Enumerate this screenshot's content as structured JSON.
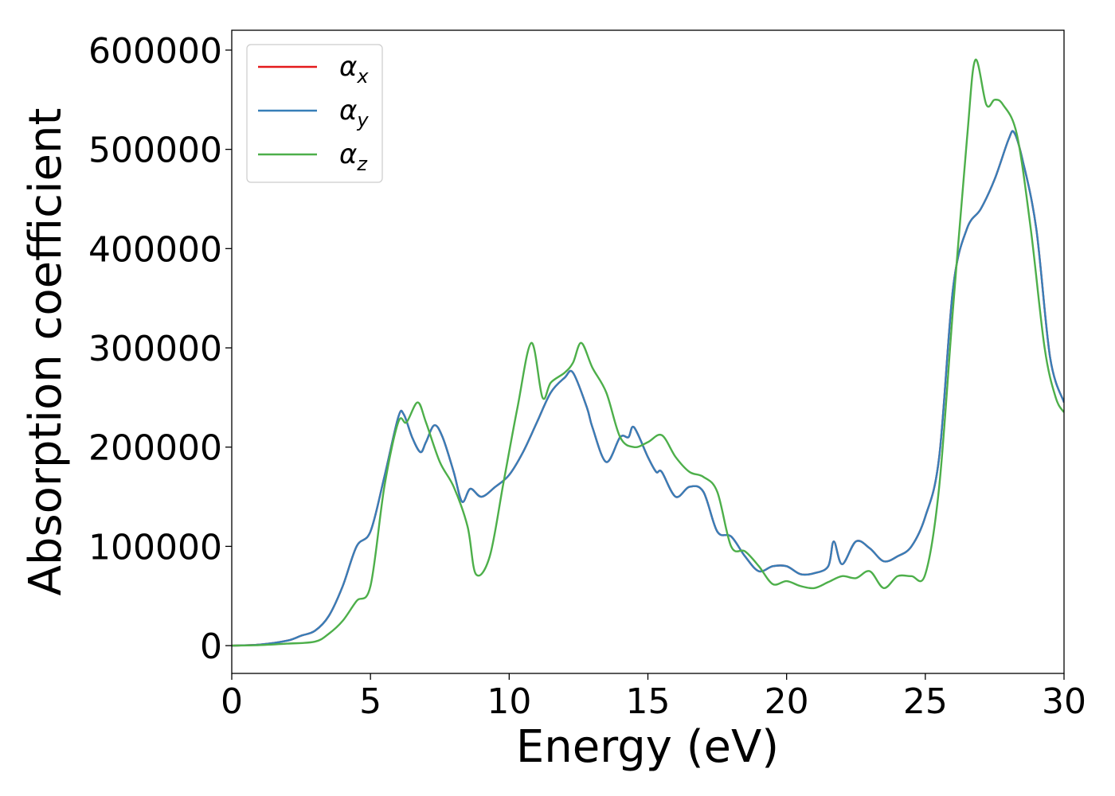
{
  "chart_data": {
    "type": "line",
    "title": "",
    "xlabel": "Energy (eV)",
    "ylabel": "Absorption coefficient",
    "xlim": [
      0,
      30
    ],
    "ylim": [
      -28000,
      620000
    ],
    "xticks": [
      0,
      5,
      10,
      15,
      20,
      25,
      30
    ],
    "xtick_labels": [
      "0",
      "5",
      "10",
      "15",
      "20",
      "25",
      "30"
    ],
    "yticks": [
      0,
      100000,
      200000,
      300000,
      400000,
      500000,
      600000
    ],
    "ytick_labels": [
      "0",
      "100000",
      "200000",
      "300000",
      "400000",
      "500000",
      "600000"
    ],
    "grid": false,
    "legend_position": "top-left",
    "series": [
      {
        "name": "α",
        "name_subscript": "x",
        "color": "#e41a1c",
        "x": [
          0,
          1,
          2,
          2.5,
          3,
          3.5,
          4,
          4.5,
          5,
          5.5,
          6,
          6.2,
          6.5,
          6.8,
          7,
          7.3,
          7.6,
          8,
          8.3,
          8.6,
          9,
          9.5,
          10,
          10.5,
          11,
          11.5,
          12,
          12.3,
          12.8,
          13,
          13.5,
          14,
          14.3,
          14.5,
          15,
          15.3,
          15.5,
          16,
          16.5,
          17,
          17.5,
          18,
          18.5,
          19,
          19.5,
          20,
          20.5,
          21,
          21.5,
          21.7,
          22,
          22.5,
          23,
          23.5,
          24,
          24.5,
          25,
          25.5,
          26,
          26.5,
          27,
          27.5,
          28,
          28.2,
          28.5,
          29,
          29.5,
          30
        ],
        "y": [
          0,
          1000,
          5000,
          10000,
          15000,
          30000,
          60000,
          100000,
          115000,
          170000,
          230000,
          233000,
          210000,
          195000,
          205000,
          222000,
          210000,
          175000,
          145000,
          158000,
          150000,
          160000,
          172000,
          195000,
          225000,
          255000,
          270000,
          275000,
          240000,
          220000,
          185000,
          210000,
          210000,
          220000,
          190000,
          175000,
          175000,
          150000,
          160000,
          155000,
          115000,
          110000,
          90000,
          75000,
          80000,
          80000,
          72000,
          73000,
          80000,
          105000,
          82000,
          105000,
          98000,
          85000,
          90000,
          100000,
          130000,
          190000,
          360000,
          420000,
          440000,
          470000,
          510000,
          517000,
          490000,
          420000,
          290000,
          245000
        ]
      },
      {
        "name": "α",
        "name_subscript": "y",
        "color": "#377eb8",
        "x": [
          0,
          1,
          2,
          2.5,
          3,
          3.5,
          4,
          4.5,
          5,
          5.5,
          6,
          6.2,
          6.5,
          6.8,
          7,
          7.3,
          7.6,
          8,
          8.3,
          8.6,
          9,
          9.5,
          10,
          10.5,
          11,
          11.5,
          12,
          12.3,
          12.8,
          13,
          13.5,
          14,
          14.3,
          14.5,
          15,
          15.3,
          15.5,
          16,
          16.5,
          17,
          17.5,
          18,
          18.5,
          19,
          19.5,
          20,
          20.5,
          21,
          21.5,
          21.7,
          22,
          22.5,
          23,
          23.5,
          24,
          24.5,
          25,
          25.5,
          26,
          26.5,
          27,
          27.5,
          28,
          28.2,
          28.5,
          29,
          29.5,
          30
        ],
        "y": [
          0,
          1000,
          5000,
          10000,
          15000,
          30000,
          60000,
          100000,
          115000,
          170000,
          230000,
          233000,
          210000,
          195000,
          205000,
          222000,
          210000,
          175000,
          145000,
          158000,
          150000,
          160000,
          172000,
          195000,
          225000,
          255000,
          270000,
          275000,
          240000,
          220000,
          185000,
          210000,
          210000,
          220000,
          190000,
          175000,
          175000,
          150000,
          160000,
          155000,
          115000,
          110000,
          90000,
          75000,
          80000,
          80000,
          72000,
          73000,
          80000,
          105000,
          82000,
          105000,
          98000,
          85000,
          90000,
          100000,
          130000,
          190000,
          360000,
          420000,
          440000,
          470000,
          510000,
          517000,
          490000,
          420000,
          290000,
          245000
        ]
      },
      {
        "name": "α",
        "name_subscript": "z",
        "color": "#4daf4a",
        "x": [
          0,
          1,
          2,
          3,
          3.5,
          4,
          4.5,
          5,
          5.5,
          6,
          6.3,
          6.7,
          7,
          7.5,
          8,
          8.5,
          8.8,
          9.3,
          9.8,
          10.3,
          10.8,
          11.2,
          11.5,
          12,
          12.3,
          12.6,
          13,
          13.5,
          14,
          14.5,
          15,
          15.5,
          16,
          16.5,
          17,
          17.5,
          18,
          18.5,
          19,
          19.5,
          20,
          20.5,
          21,
          21.5,
          22,
          22.5,
          23,
          23.5,
          24,
          24.5,
          25,
          25.5,
          26,
          26.5,
          26.8,
          27.2,
          27.5,
          27.8,
          28.3,
          28.8,
          29.3,
          29.7,
          30
        ],
        "y": [
          0,
          500,
          2000,
          4000,
          12000,
          25000,
          45000,
          60000,
          160000,
          225000,
          225000,
          245000,
          225000,
          185000,
          160000,
          120000,
          72000,
          90000,
          165000,
          240000,
          305000,
          250000,
          265000,
          275000,
          285000,
          305000,
          280000,
          255000,
          210000,
          200000,
          205000,
          212000,
          190000,
          175000,
          170000,
          155000,
          100000,
          95000,
          80000,
          62000,
          65000,
          60000,
          58000,
          64000,
          70000,
          68000,
          75000,
          58000,
          70000,
          70000,
          72000,
          160000,
          340000,
          510000,
          590000,
          545000,
          550000,
          545000,
          515000,
          420000,
          300000,
          250000,
          235000
        ]
      }
    ]
  }
}
